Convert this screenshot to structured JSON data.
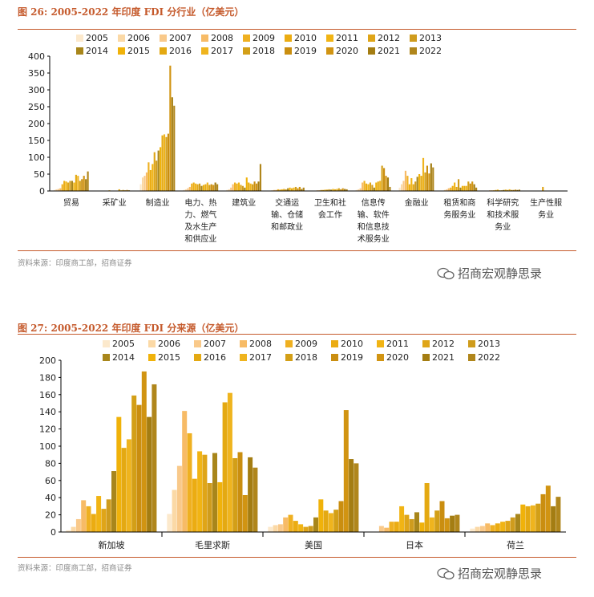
{
  "years": [
    "2005",
    "2006",
    "2007",
    "2008",
    "2009",
    "2010",
    "2011",
    "2012",
    "2013",
    "2014",
    "2015",
    "2016",
    "2017",
    "2018",
    "2019",
    "2020",
    "2021",
    "2022"
  ],
  "year_colors": [
    "#fce9cc",
    "#fbd9a6",
    "#f9c98a",
    "#f7bb66",
    "#efb021",
    "#ebac12",
    "#f1b414",
    "#dfa518",
    "#cf9c1d",
    "#a8861b",
    "#f0b20a",
    "#e4a912",
    "#efb41e",
    "#d39f17",
    "#ca8e10",
    "#d19412",
    "#a47d12",
    "#b0861b"
  ],
  "watermark": "招商宏观静思录",
  "charts": [
    {
      "title": "图 26:  2005-2022 年印度 FDI 分行业（亿美元）",
      "source": "资料来源：印度商工部，招商证券",
      "chart_data": {
        "type": "bar",
        "title": "图 26:  2005-2022 年印度 FDI 分行业（亿美元）",
        "xlabel": "",
        "ylabel": "",
        "ylim": [
          0,
          400
        ],
        "yticks": [
          0,
          50,
          100,
          150,
          200,
          250,
          300,
          350,
          400
        ],
        "legend": "top",
        "categories": [
          "贸易",
          "采矿业",
          "制造业",
          "电力、热力、燃气及水生产和供应业",
          "建筑业",
          "交通运输、仓储和邮政业",
          "卫生和社会工作",
          "信息传输、软件和信息技术服务业",
          "金融业",
          "租赁和商务服务业",
          "科学研究和技术服务业",
          "生产性服务业"
        ],
        "category_lines": [
          [
            "贸易"
          ],
          [
            "采矿业"
          ],
          [
            "制造业"
          ],
          [
            "电力、热",
            "力、燃气",
            "及水生产",
            "和供应业"
          ],
          [
            "建筑业"
          ],
          [
            "交通运",
            "输、仓储",
            "和邮政业"
          ],
          [
            "卫生和社",
            "会工作"
          ],
          [
            "信息传",
            "输、软件",
            "和信息技",
            "术服务业"
          ],
          [
            "金融业"
          ],
          [
            "租赁和商",
            "务服务业"
          ],
          [
            "科学研究",
            "和技术服",
            "务业"
          ],
          [
            "生产性服",
            "务业"
          ]
        ],
        "series": [
          {
            "name": "2005",
            "values": [
              3,
              0.5,
              20,
              3,
              3,
              1,
              0.5,
              3,
              10,
              1,
              0.5,
              0
            ]
          },
          {
            "name": "2006",
            "values": [
              5,
              0.5,
              40,
              5,
              5,
              2,
              1,
              5,
              20,
              3,
              1,
              0
            ]
          },
          {
            "name": "2007",
            "values": [
              6,
              1,
              45,
              8,
              10,
              3,
              2,
              8,
              30,
              5,
              2,
              0
            ]
          },
          {
            "name": "2008",
            "values": [
              8,
              1,
              55,
              12,
              20,
              3,
              2,
              25,
              60,
              8,
              2,
              0
            ]
          },
          {
            "name": "2009",
            "values": [
              20,
              1,
              85,
              22,
              25,
              5,
              3,
              30,
              45,
              10,
              2,
              0
            ]
          },
          {
            "name": "2010",
            "values": [
              30,
              1,
              62,
              25,
              22,
              4,
              3,
              22,
              20,
              15,
              3,
              0
            ]
          },
          {
            "name": "2011",
            "values": [
              28,
              2,
              80,
              22,
              25,
              5,
              4,
              20,
              38,
              25,
              4,
              0
            ]
          },
          {
            "name": "2012",
            "values": [
              25,
              1,
              115,
              20,
              18,
              6,
              4,
              25,
              20,
              12,
              2,
              12
            ]
          },
          {
            "name": "2013",
            "values": [
              30,
              1,
              90,
              22,
              15,
              5,
              5,
              18,
              28,
              35,
              2,
              0
            ]
          },
          {
            "name": "2014",
            "values": [
              30,
              1,
              120,
              15,
              10,
              8,
              4,
              10,
              42,
              10,
              3,
              0
            ]
          },
          {
            "name": "2015",
            "values": [
              25,
              1,
              130,
              18,
              40,
              10,
              6,
              25,
              50,
              15,
              4,
              0
            ]
          },
          {
            "name": "2016",
            "values": [
              48,
              5,
              165,
              20,
              25,
              8,
              5,
              28,
              45,
              15,
              3,
              0
            ]
          },
          {
            "name": "2017",
            "values": [
              45,
              2,
              168,
              25,
              22,
              10,
              6,
              30,
              98,
              15,
              5,
              0
            ]
          },
          {
            "name": "2018",
            "values": [
              30,
              3,
              160,
              18,
              20,
              12,
              8,
              75,
              55,
              28,
              3,
              0
            ]
          },
          {
            "name": "2019",
            "values": [
              35,
              2,
              170,
              20,
              28,
              8,
              5,
              68,
              75,
              22,
              3,
              0
            ]
          },
          {
            "name": "2020",
            "values": [
              45,
              3,
              372,
              18,
              22,
              12,
              8,
              45,
              52,
              28,
              4,
              0
            ]
          },
          {
            "name": "2021",
            "values": [
              35,
              2,
              278,
              25,
              28,
              6,
              6,
              40,
              82,
              20,
              3,
              0
            ]
          },
          {
            "name": "2022",
            "values": [
              58,
              1,
              253,
              20,
              80,
              10,
              5,
              12,
              70,
              10,
              4,
              0
            ]
          }
        ]
      }
    },
    {
      "title": "图 27:  2005-2022 年印度 FDI 分来源（亿美元）",
      "source": "资料来源：印度商工部，招商证券",
      "chart_data": {
        "type": "bar",
        "title": "图 27:  2005-2022 年印度 FDI 分来源（亿美元）",
        "xlabel": "",
        "ylabel": "",
        "ylim": [
          0,
          200
        ],
        "yticks": [
          0,
          20,
          40,
          60,
          80,
          100,
          120,
          140,
          160,
          180,
          200
        ],
        "legend": "top",
        "categories": [
          "新加坡",
          "毛里求斯",
          "美国",
          "日本",
          "荷兰"
        ],
        "category_lines": [
          [
            "新加坡"
          ],
          [
            "毛里求斯"
          ],
          [
            "美国"
          ],
          [
            "日本"
          ],
          [
            "荷兰"
          ]
        ],
        "series": [
          {
            "name": "2005",
            "values": [
              2,
              21,
              6,
              0,
              4
            ]
          },
          {
            "name": "2006",
            "values": [
              6,
              49,
              8,
              0,
              6
            ]
          },
          {
            "name": "2007",
            "values": [
              15,
              77,
              9,
              7,
              7
            ]
          },
          {
            "name": "2008",
            "values": [
              37,
              141,
              17,
              5,
              10
            ]
          },
          {
            "name": "2009",
            "values": [
              30,
              115,
              20,
              12,
              8
            ]
          },
          {
            "name": "2010",
            "values": [
              21,
              62,
              13,
              12,
              10
            ]
          },
          {
            "name": "2011",
            "values": [
              42,
              94,
              9,
              30,
              12
            ]
          },
          {
            "name": "2012",
            "values": [
              27,
              90,
              6,
              20,
              13
            ]
          },
          {
            "name": "2013",
            "values": [
              38,
              57,
              7,
              15,
              17
            ]
          },
          {
            "name": "2014",
            "values": [
              71,
              92,
              17,
              23,
              21
            ]
          },
          {
            "name": "2015",
            "values": [
              134,
              58,
              38,
              11,
              32
            ]
          },
          {
            "name": "2016",
            "values": [
              98,
              151,
              25,
              57,
              30
            ]
          },
          {
            "name": "2017",
            "values": [
              108,
              162,
              22,
              17,
              31
            ]
          },
          {
            "name": "2018",
            "values": [
              159,
              86,
              26,
              25,
              33
            ]
          },
          {
            "name": "2019",
            "values": [
              148,
              93,
              36,
              36,
              44
            ]
          },
          {
            "name": "2020",
            "values": [
              187,
              43,
              142,
              16,
              54
            ]
          },
          {
            "name": "2021",
            "values": [
              134,
              87,
              85,
              19,
              30
            ]
          },
          {
            "name": "2022",
            "values": [
              172,
              75,
              80,
              20,
              41
            ]
          }
        ]
      }
    }
  ]
}
